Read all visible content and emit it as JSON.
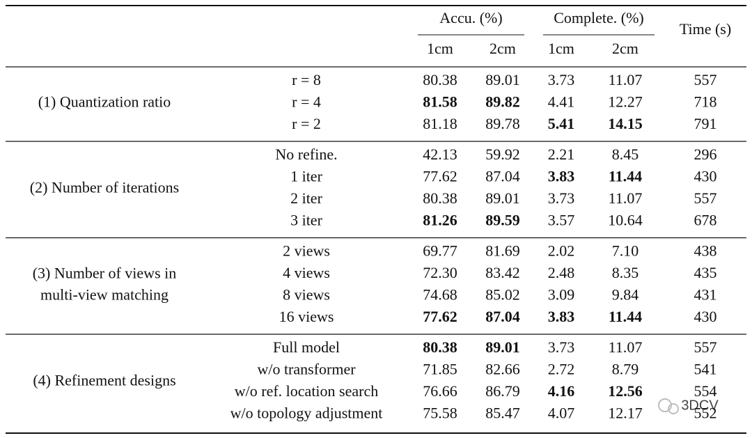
{
  "header": {
    "groups": [
      {
        "label": "Accu. (%)",
        "columns": [
          "1cm",
          "2cm"
        ]
      },
      {
        "label": "Complete. (%)",
        "columns": [
          "1cm",
          "2cm"
        ]
      }
    ],
    "time": "Time (s)"
  },
  "sections": [
    {
      "label": [
        "(1) Quantization ratio"
      ],
      "rows": [
        {
          "label": "r = 8",
          "cells": [
            "80.38",
            "89.01",
            "3.73",
            "11.07",
            "557"
          ],
          "bold": []
        },
        {
          "label": "r = 4",
          "cells": [
            "81.58",
            "89.82",
            "4.41",
            "12.27",
            "718"
          ],
          "bold": [
            0,
            1
          ]
        },
        {
          "label": "r = 2",
          "cells": [
            "81.18",
            "89.78",
            "5.41",
            "14.15",
            "791"
          ],
          "bold": [
            2,
            3
          ]
        }
      ]
    },
    {
      "label": [
        "(2) Number of iterations"
      ],
      "rows": [
        {
          "label": "No refine.",
          "cells": [
            "42.13",
            "59.92",
            "2.21",
            "8.45",
            "296"
          ],
          "bold": []
        },
        {
          "label": "1 iter",
          "cells": [
            "77.62",
            "87.04",
            "3.83",
            "11.44",
            "430"
          ],
          "bold": [
            2,
            3
          ]
        },
        {
          "label": "2 iter",
          "cells": [
            "80.38",
            "89.01",
            "3.73",
            "11.07",
            "557"
          ],
          "bold": []
        },
        {
          "label": "3 iter",
          "cells": [
            "81.26",
            "89.59",
            "3.57",
            "10.64",
            "678"
          ],
          "bold": [
            0,
            1
          ]
        }
      ]
    },
    {
      "label": [
        "(3) Number of views in",
        "multi-view matching"
      ],
      "rows": [
        {
          "label": "2 views",
          "cells": [
            "69.77",
            "81.69",
            "2.02",
            "7.10",
            "438"
          ],
          "bold": []
        },
        {
          "label": "4 views",
          "cells": [
            "72.30",
            "83.42",
            "2.48",
            "8.35",
            "435"
          ],
          "bold": []
        },
        {
          "label": "8 views",
          "cells": [
            "74.68",
            "85.02",
            "3.09",
            "9.84",
            "431"
          ],
          "bold": []
        },
        {
          "label": "16 views",
          "cells": [
            "77.62",
            "87.04",
            "3.83",
            "11.44",
            "430"
          ],
          "bold": [
            0,
            1,
            2,
            3
          ]
        }
      ]
    },
    {
      "label": [
        "(4) Refinement designs"
      ],
      "rows": [
        {
          "label": "Full model",
          "cells": [
            "80.38",
            "89.01",
            "3.73",
            "11.07",
            "557"
          ],
          "bold": [
            0,
            1
          ]
        },
        {
          "label": "w/o transformer",
          "cells": [
            "71.85",
            "82.66",
            "2.72",
            "8.79",
            "541"
          ],
          "bold": []
        },
        {
          "label": "w/o ref. location search",
          "cells": [
            "76.66",
            "86.79",
            "4.16",
            "12.56",
            "554"
          ],
          "bold": [
            2,
            3
          ]
        },
        {
          "label": "w/o topology adjustment",
          "cells": [
            "75.58",
            "85.47",
            "4.07",
            "12.17",
            "552"
          ],
          "bold": []
        }
      ]
    }
  ],
  "watermark": "3DCV"
}
